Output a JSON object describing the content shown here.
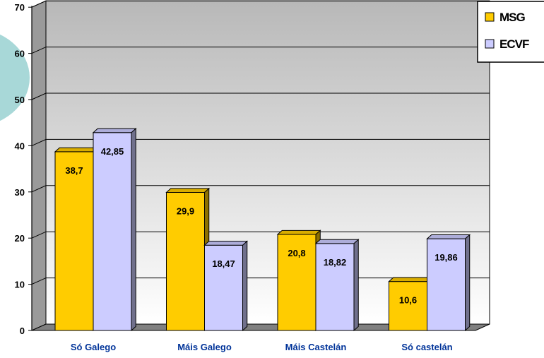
{
  "chart_data": {
    "type": "bar",
    "categories": [
      "Só Galego",
      "Máis Galego",
      "Máis Castelán",
      "Só castelán"
    ],
    "series": [
      {
        "name": "MSG",
        "values": [
          38.7,
          29.9,
          20.8,
          10.6
        ],
        "labels": [
          "38,7",
          "29,9",
          "20,8",
          "10,6"
        ],
        "color": "#FFCC00"
      },
      {
        "name": "ECVF",
        "values": [
          42.85,
          18.47,
          18.82,
          19.86
        ],
        "labels": [
          "42,85",
          "18,47",
          "18,82",
          "19,86"
        ],
        "color": "#CCCCFF"
      }
    ],
    "yticks": [
      "0",
      "10",
      "20",
      "30",
      "40",
      "50",
      "60",
      "70"
    ],
    "ylim": [
      0,
      70
    ],
    "grid": true,
    "three_d": true,
    "legend_position": "top-right",
    "colors": {
      "wall_top": "#B8B8B8",
      "wall_bottom": "#FFFFFF",
      "floor": "#808080",
      "label_text": "#000000",
      "category_text": "#003399",
      "decor_circle": "#A8D8D8"
    }
  }
}
